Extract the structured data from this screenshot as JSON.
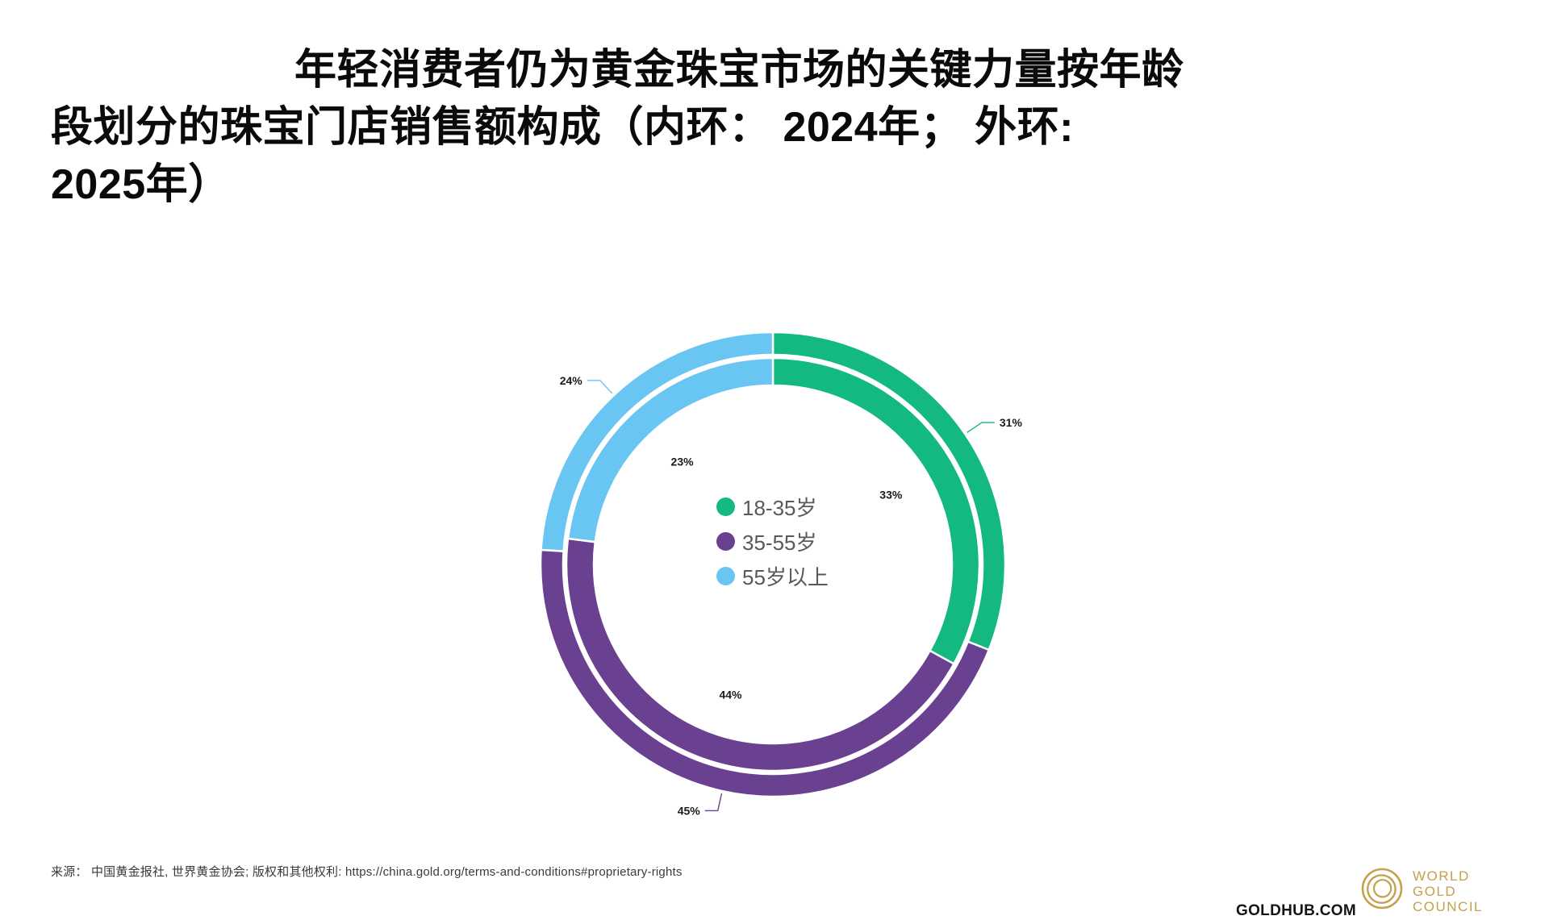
{
  "title": {
    "line1": "年轻消费者仍为黄金珠宝市场的关键力量按年龄",
    "line2": "段划分的珠宝门店销售额构成（内环： 2024年； 外环:",
    "line3": "2025年）"
  },
  "chart_data": {
    "type": "pie",
    "subtype": "nested-double-ring-donut",
    "title": "按年龄段划分的珠宝门店销售额构成（内环：2024年；外环：2025年）",
    "categories": [
      "18-35岁",
      "35-55岁",
      "55岁以上"
    ],
    "colors": [
      "#13b97f",
      "#6a4191",
      "#69c5f2"
    ],
    "unit": "%",
    "start_angle": "top",
    "direction": "clockwise",
    "legend_position": "center",
    "series": [
      {
        "name": "2024年",
        "ring": "inner",
        "values": [
          33,
          44,
          23
        ]
      },
      {
        "name": "2025年",
        "ring": "outer",
        "values": [
          31,
          45,
          24
        ]
      }
    ],
    "label_style": {
      "outer_labels": "callout-outside",
      "inner_labels": "inside-hole"
    }
  },
  "footer": {
    "source": "来源： 中国黄金报社, 世界黄金协会; 版权和其他权利: https://china.gold.org/terms-and-conditions#proprietary-rights"
  },
  "branding": {
    "goldhub": "GOLDHUB.COM",
    "logo_lines": [
      "WORLD",
      "GOLD",
      "COUNCIL"
    ],
    "gold_color": "#c5a14f"
  }
}
